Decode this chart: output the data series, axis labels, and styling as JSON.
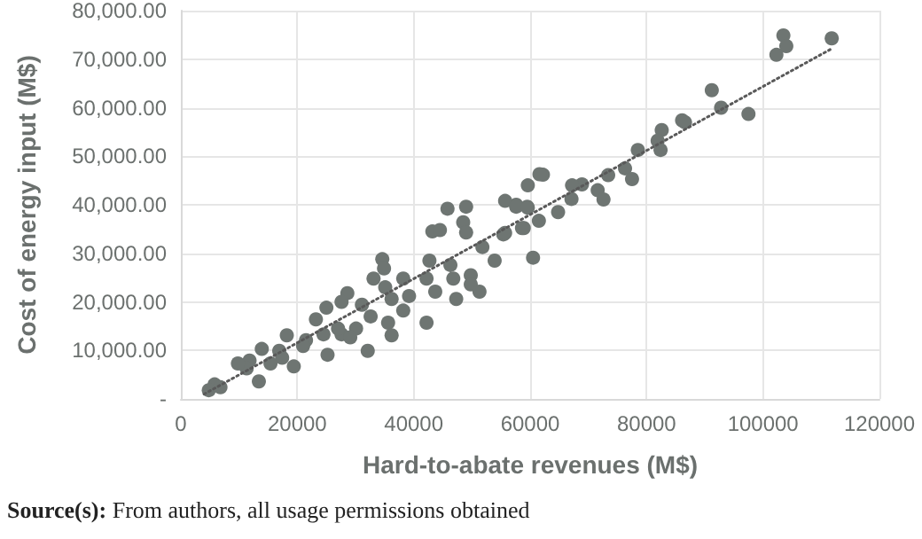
{
  "chart_data": {
    "type": "scatter",
    "xlabel": "Hard-to-abate revenues (M$)",
    "ylabel": "Cost of energy input (M$)",
    "xlim": [
      0,
      120000
    ],
    "xticks": [
      0,
      20000,
      40000,
      60000,
      80000,
      100000,
      120000
    ],
    "ylim": [
      0,
      80000
    ],
    "yticks": [
      {
        "value": 0,
        "label": "-"
      },
      {
        "value": 10000,
        "label": "10,000.00"
      },
      {
        "value": 20000,
        "label": "20,000.00"
      },
      {
        "value": 30000,
        "label": "30,000.00"
      },
      {
        "value": 40000,
        "label": "40,000.00"
      },
      {
        "value": 50000,
        "label": "50,000.00"
      },
      {
        "value": 60000,
        "label": "60,000.00"
      },
      {
        "value": 70000,
        "label": "70,000.00"
      },
      {
        "value": 80000,
        "label": "80,000.00"
      }
    ],
    "grid": true,
    "marker": "circle",
    "annotations": [
      "Source(s): From authors, all usage permissions obtained"
    ],
    "series": [
      {
        "color": "#6e7572",
        "x": [
          103500,
          104000,
          102300,
          111800,
          91200,
          92800,
          97500,
          86100,
          86600,
          82600,
          81900,
          82400,
          78500,
          76300,
          77500,
          73400,
          71600,
          72600,
          68900,
          67200,
          67100,
          62200,
          59600,
          59500,
          57600,
          64800,
          61500,
          58900,
          61600,
          55700,
          57600,
          59600,
          45800,
          49000,
          48500,
          43200,
          44500,
          49000,
          55400,
          58600,
          51800,
          53900,
          55700,
          60500,
          34600,
          34900,
          33100,
          35100,
          38200,
          42700,
          42200,
          46300,
          46800,
          49800,
          49800,
          51300,
          43700,
          47300,
          39200,
          38200,
          42200,
          28600,
          27600,
          31100,
          32600,
          36200,
          35600,
          36200,
          30100,
          27600,
          32100,
          25000,
          23200,
          24500,
          25200,
          21500,
          21000,
          18200,
          16900,
          19400,
          13900,
          11800,
          11300,
          13400,
          15400,
          5800,
          4800,
          6800,
          29100,
          27000,
          17400,
          9800
        ],
        "values": [
          74900,
          72700,
          70900,
          74300,
          63600,
          60000,
          58700,
          57400,
          57000,
          55400,
          53200,
          51300,
          51300,
          47500,
          45300,
          46100,
          43000,
          41100,
          44200,
          44000,
          41200,
          46200,
          44000,
          39600,
          40000,
          38500,
          36700,
          35200,
          46300,
          40800,
          39600,
          39400,
          39200,
          39600,
          36400,
          34500,
          34800,
          34300,
          33900,
          35200,
          31300,
          28500,
          34200,
          29100,
          28800,
          26900,
          24800,
          23000,
          24800,
          28500,
          24800,
          27600,
          24800,
          25500,
          23600,
          22100,
          22100,
          20600,
          21200,
          18200,
          15700,
          21800,
          20000,
          19400,
          17000,
          20600,
          15700,
          13100,
          14500,
          13300,
          9900,
          18800,
          16400,
          13300,
          9100,
          12100,
          10900,
          13100,
          9900,
          6700,
          10300,
          7900,
          6300,
          3600,
          7300,
          3000,
          1800,
          2400,
          12700,
          14500,
          8500,
          7300
        ]
      },
      {
        "type": "line",
        "color": "#595959",
        "line_style": "dotted",
        "marker": "none",
        "x": [
          4000,
          112000
        ],
        "values": [
          1000,
          72300
        ]
      }
    ]
  }
}
